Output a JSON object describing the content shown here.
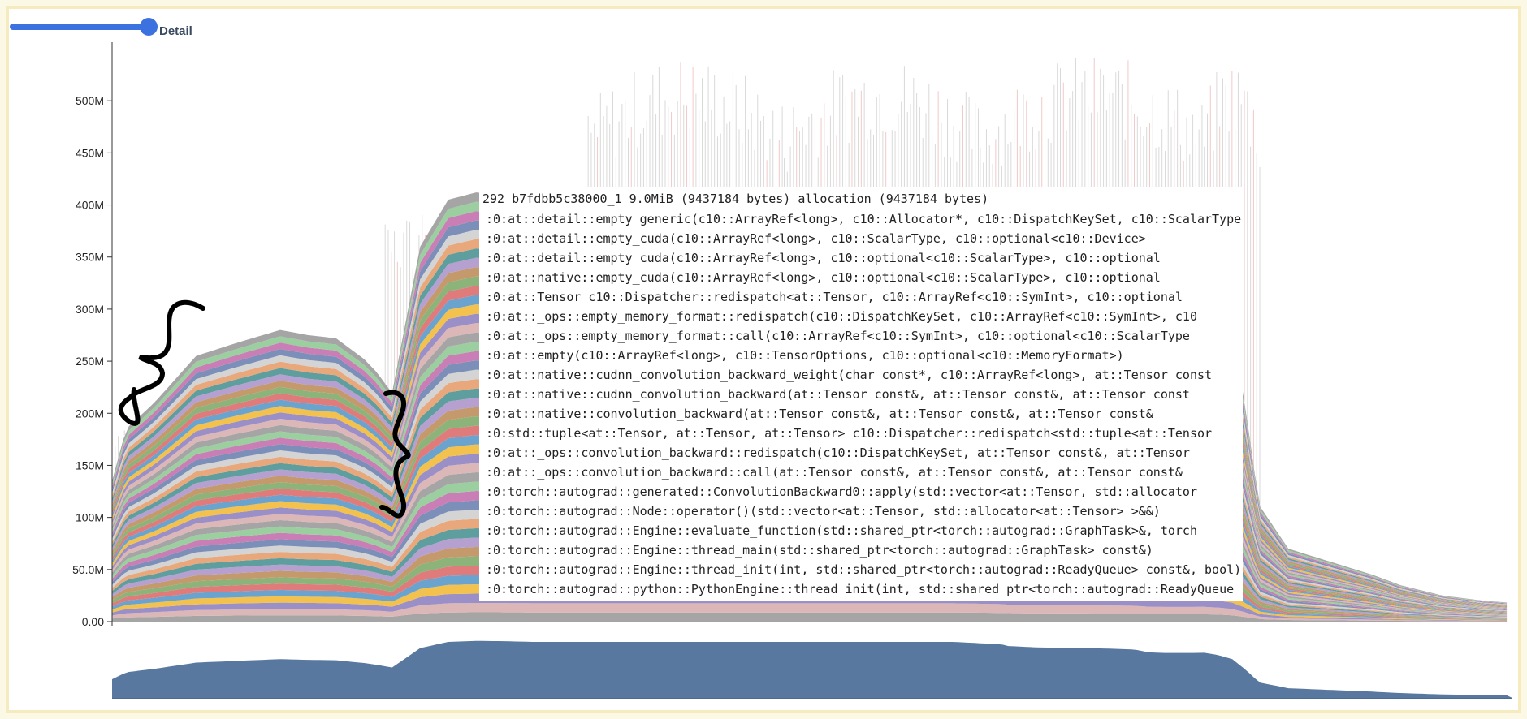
{
  "controls": {
    "detail_label": "Detail"
  },
  "tooltip": {
    "header": "292 b7fdbb5c38000_1 9.0MiB (9437184 bytes) allocation (9437184 bytes)",
    "frames": [
      ":0:at::detail::empty_generic(c10::ArrayRef&lt;long&gt;, c10::Allocator*, c10::DispatchKeySet, c10::ScalarType",
      ":0:at::detail::empty_cuda(c10::ArrayRef&lt;long&gt;, c10::ScalarType, c10::optional&lt;c10::Device&gt;",
      ":0:at::detail::empty_cuda(c10::ArrayRef&lt;long&gt;, c10::optional&lt;c10::ScalarType&gt;, c10::optional",
      ":0:at::native::empty_cuda(c10::ArrayRef&lt;long&gt;, c10::optional&lt;c10::ScalarType&gt;, c10::optional",
      ":0:at::Tensor c10::Dispatcher::redispatch&lt;at::Tensor, c10::ArrayRef&lt;c10::SymInt&gt;, c10::optional",
      ":0:at::_ops::empty_memory_format::redispatch(c10::DispatchKeySet, c10::ArrayRef&lt;c10::SymInt&gt;, c10",
      ":0:at::_ops::empty_memory_format::call(c10::ArrayRef&lt;c10::SymInt&gt;, c10::optional&lt;c10::ScalarType",
      ":0:at::empty(c10::ArrayRef&lt;long&gt;, c10::TensorOptions, c10::optional&lt;c10::MemoryFormat&gt;)",
      ":0:at::native::cudnn_convolution_backward_weight(char const*, c10::ArrayRef&lt;long&gt;, at::Tensor const",
      ":0:at::native::cudnn_convolution_backward(at::Tensor const&amp;, at::Tensor const&amp;, at::Tensor const",
      ":0:at::native::convolution_backward(at::Tensor const&amp;, at::Tensor const&amp;, at::Tensor const&amp;",
      ":0:std::tuple&lt;at::Tensor, at::Tensor, at::Tensor&gt; c10::Dispatcher::redispatch&lt;std::tuple&lt;at::Tensor",
      ":0:at::_ops::convolution_backward::redispatch(c10::DispatchKeySet, at::Tensor const&amp;, at::Tensor",
      ":0:at::_ops::convolution_backward::call(at::Tensor const&amp;, at::Tensor const&amp;, at::Tensor const&amp;",
      ":0:torch::autograd::generated::ConvolutionBackward0::apply(std::vector&lt;at::Tensor, std::allocator",
      ":0:torch::autograd::Node::operator()(std::vector&lt;at::Tensor, std::allocator&lt;at::Tensor&gt; &gt;&amp;&amp;)",
      ":0:torch::autograd::Engine::evaluate_function(std::shared_ptr&lt;torch::autograd::GraphTask&gt;&amp;, torch",
      ":0:torch::autograd::Engine::thread_main(std::shared_ptr&lt;torch::autograd::GraphTask&gt; const&amp;)",
      ":0:torch::autograd::Engine::thread_init(int, std::shared_ptr&lt;torch::autograd::ReadyQueue&gt; const&amp;, bool)",
      ":0:torch::autograd::python::PythonEngine::thread_init(int, std::shared_ptr&lt;torch::autograd::ReadyQueue"
    ]
  },
  "chart_data": {
    "type": "area",
    "stacked": true,
    "ylim": [
      0,
      550000000
    ],
    "yticks": [
      {
        "value": 0,
        "label": "0.00"
      },
      {
        "value": 50000000,
        "label": "50.0M"
      },
      {
        "value": 100000000,
        "label": "100M"
      },
      {
        "value": 150000000,
        "label": "150M"
      },
      {
        "value": 200000000,
        "label": "200M"
      },
      {
        "value": 250000000,
        "label": "250M"
      },
      {
        "value": 300000000,
        "label": "300M"
      },
      {
        "value": 350000000,
        "label": "350M"
      },
      {
        "value": 400000000,
        "label": "400M"
      },
      {
        "value": 450000000,
        "label": "450M"
      },
      {
        "value": 500000000,
        "label": "500M"
      }
    ],
    "xlim": [
      0,
      100
    ],
    "total_memory": {
      "x": [
        0,
        1,
        3,
        6,
        9,
        12,
        14,
        16,
        18,
        19,
        19.5,
        20,
        22,
        24,
        26,
        28,
        30,
        60,
        62,
        63.5,
        64,
        66,
        70,
        73,
        74,
        75,
        76,
        77,
        78,
        79,
        80,
        80.5,
        81,
        81.5,
        82,
        84,
        90,
        92,
        95,
        98,
        100
      ],
      "y": [
        135000000,
        185000000,
        210000000,
        255000000,
        268000000,
        280000000,
        275000000,
        272000000,
        252000000,
        238000000,
        228000000,
        220000000,
        360000000,
        405000000,
        412000000,
        410000000,
        405000000,
        405000000,
        395000000,
        387000000,
        375000000,
        365000000,
        360000000,
        350000000,
        330000000,
        325000000,
        325000000,
        325000000,
        326000000,
        310000000,
        280000000,
        240000000,
        200000000,
        150000000,
        110000000,
        70000000,
        45000000,
        35000000,
        25000000,
        20000000,
        18000000
      ]
    },
    "layer_count": 46,
    "spike_peaks_m": [
      210,
      415,
      545,
      545,
      545,
      545
    ]
  }
}
